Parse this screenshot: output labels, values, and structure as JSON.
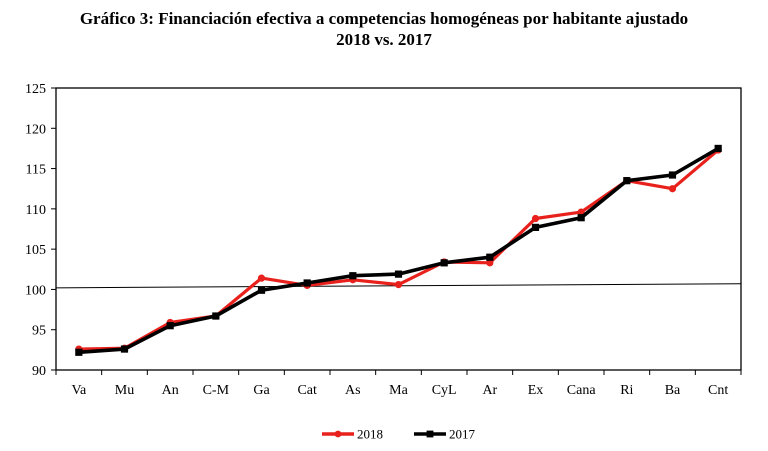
{
  "chart_data": {
    "type": "line",
    "title": "Gráfico 3: Financiación efectiva a competencias homogéneas por habitante ajustado",
    "subtitle": "2018 vs. 2017",
    "categories": [
      "Va",
      "Mu",
      "An",
      "C-M",
      "Ga",
      "Cat",
      "As",
      "Ma",
      "CyL",
      "Ar",
      "Ex",
      "Cana",
      "Ri",
      "Ba",
      "Cnt"
    ],
    "ylim": [
      90,
      125
    ],
    "yticks": [
      90,
      95,
      100,
      105,
      110,
      115,
      120,
      125
    ],
    "series": [
      {
        "name": "2018",
        "color": "#e8211c",
        "marker": "circle",
        "values": [
          92.6,
          92.7,
          95.9,
          96.7,
          101.4,
          100.5,
          101.2,
          100.6,
          103.4,
          103.3,
          108.8,
          109.6,
          113.5,
          112.5,
          117.3
        ]
      },
      {
        "name": "2017",
        "color": "#000000",
        "marker": "square",
        "values": [
          92.2,
          92.6,
          95.5,
          96.7,
          99.9,
          100.8,
          101.7,
          101.9,
          103.3,
          104.0,
          107.7,
          108.9,
          113.5,
          114.2,
          117.5
        ]
      }
    ],
    "reference_line": {
      "from": 100.2,
      "to": 100.7
    },
    "grid": false,
    "legend_position": "bottom-center"
  }
}
